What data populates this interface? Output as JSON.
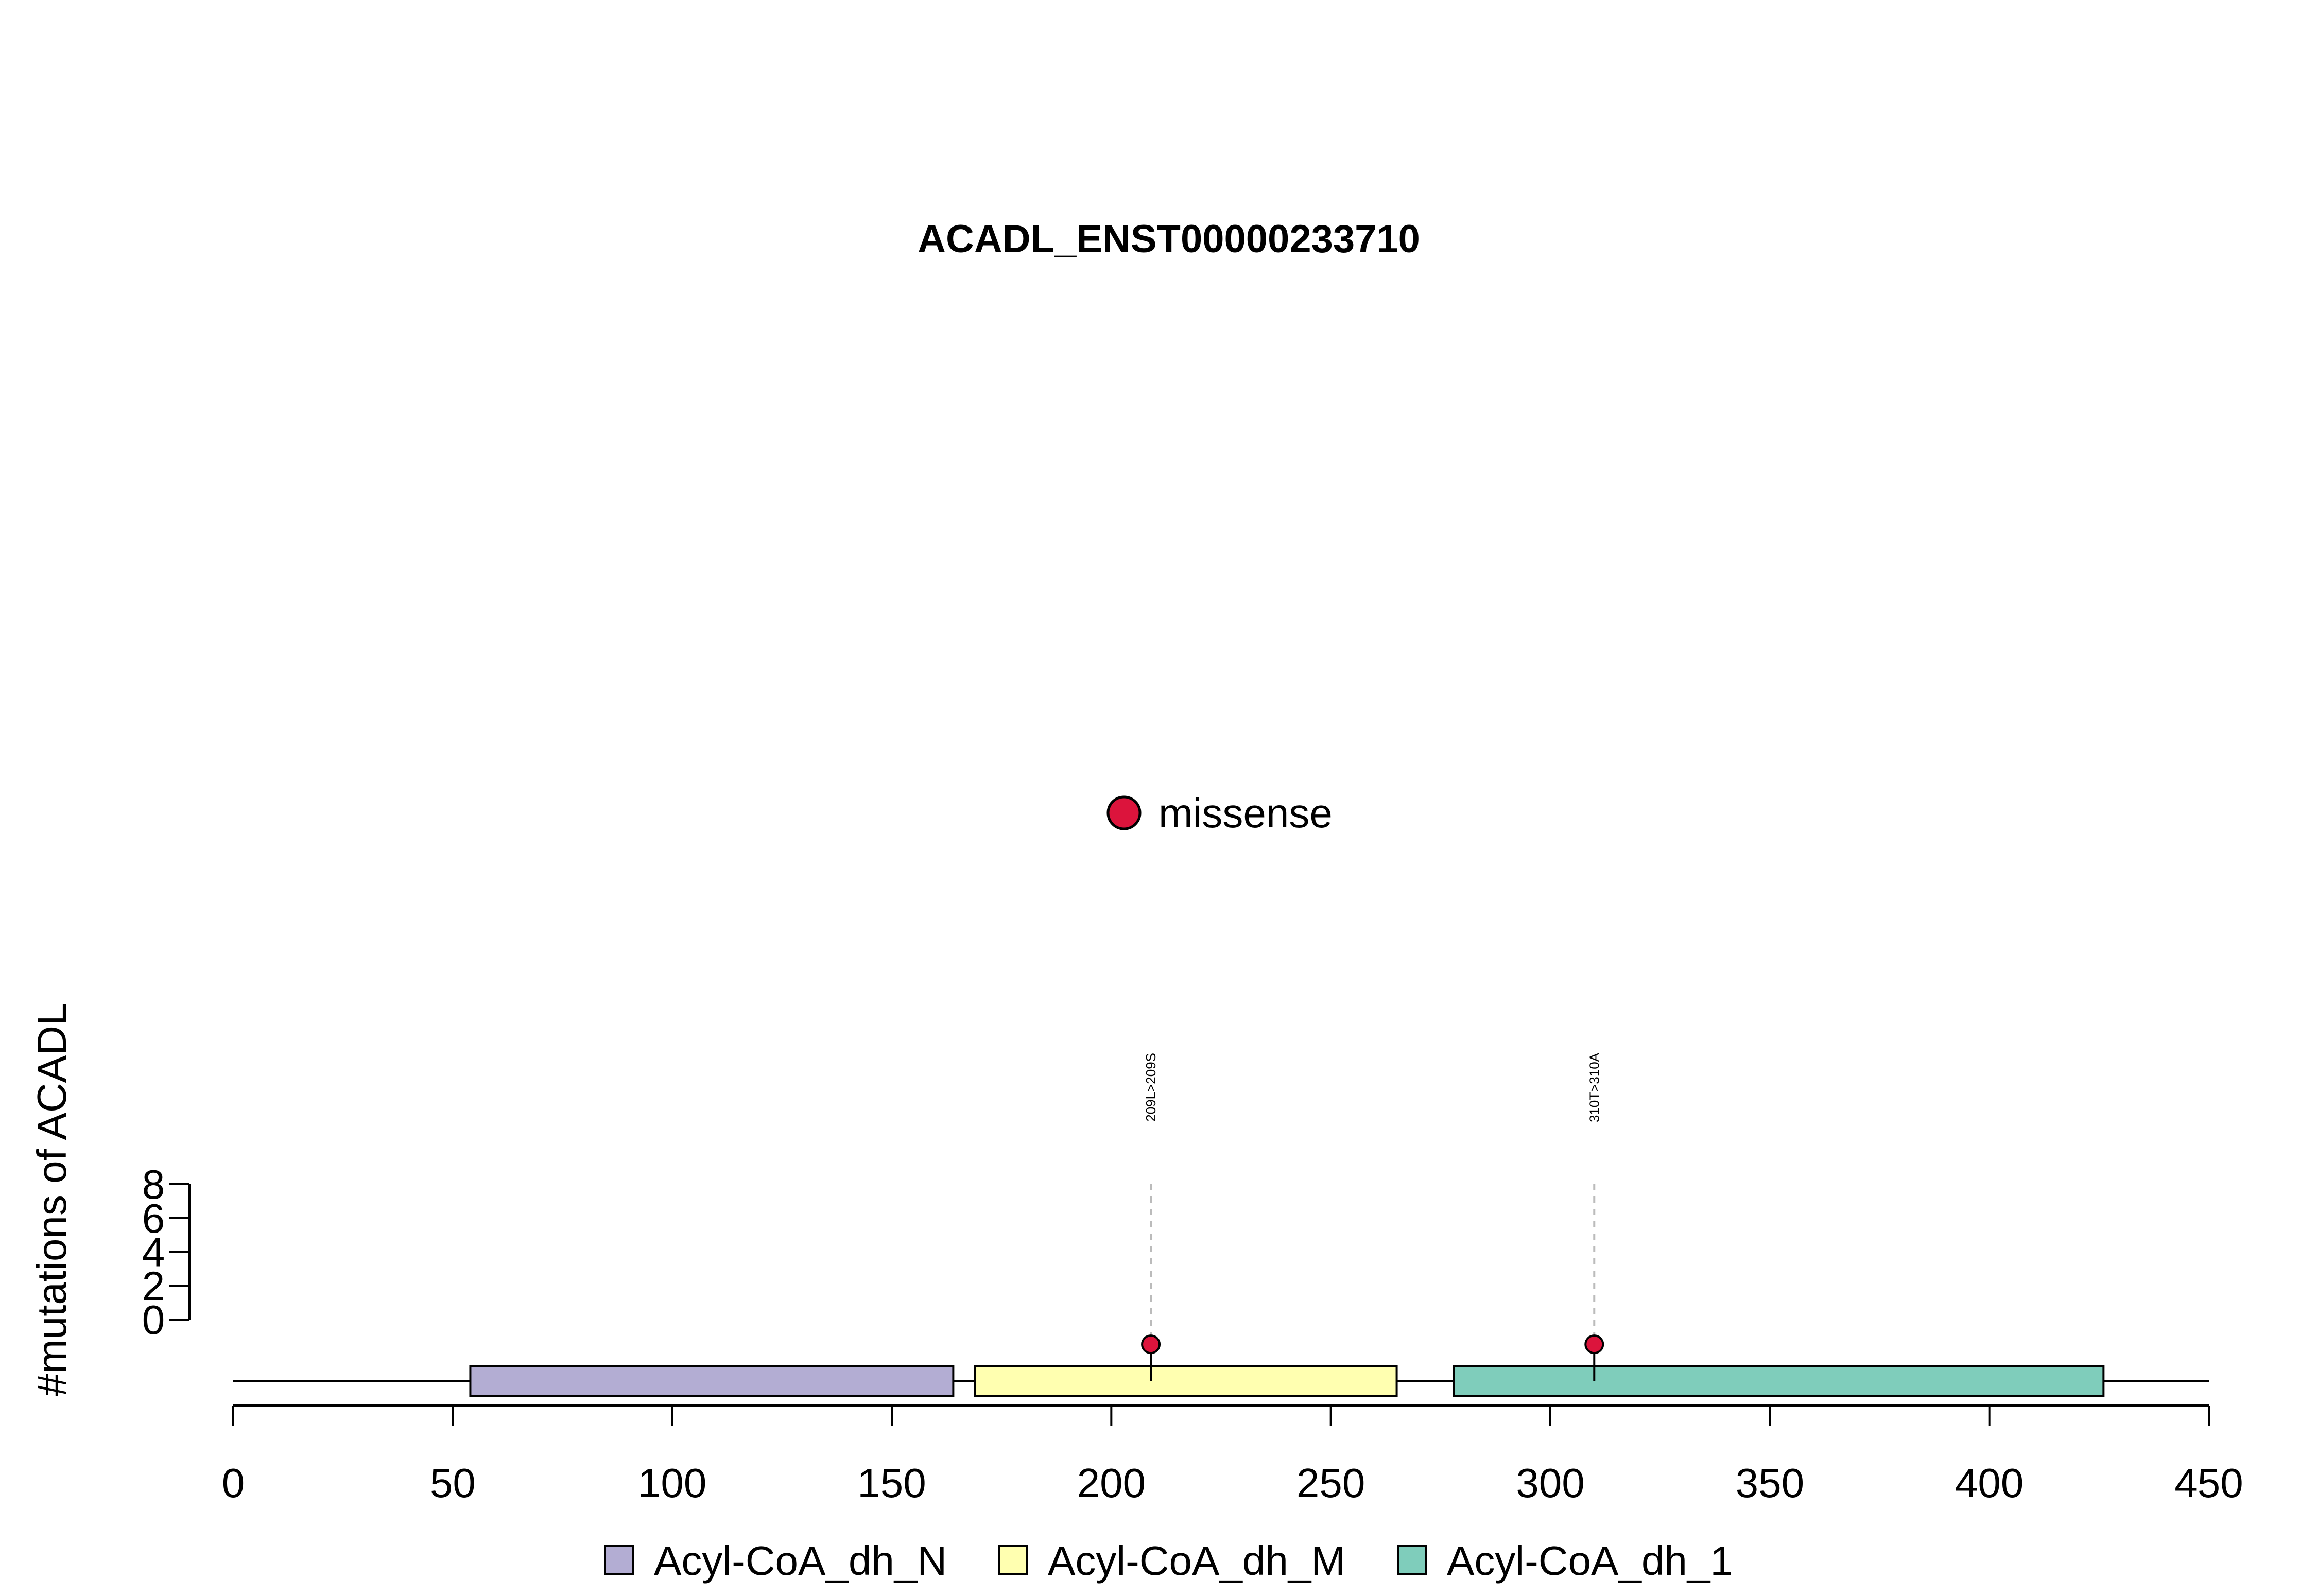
{
  "chart_data": {
    "type": "scatter",
    "title": "ACADL_ENST00000233710",
    "xlabel": "",
    "ylabel": "#mutations of ACADL",
    "xlim": [
      0,
      450
    ],
    "x_ticks": [
      "0",
      "50",
      "100",
      "150",
      "200",
      "250",
      "300",
      "350",
      "400",
      "450"
    ],
    "ylim": [
      0,
      8
    ],
    "y_ticks": [
      "0",
      "2",
      "4",
      "6",
      "8"
    ],
    "mutation_legend": [
      {
        "label": "missense",
        "color": "#DC143C"
      }
    ],
    "mutations": [
      {
        "position": 209,
        "count": 1,
        "label": "209L>209S",
        "type": "missense"
      },
      {
        "position": 310,
        "count": 1,
        "label": "310T>310A",
        "type": "missense"
      }
    ],
    "domains": [
      {
        "name": "Acyl-CoA_dh_N",
        "start": 54,
        "end": 164,
        "color": "#B3ADD3"
      },
      {
        "name": "Acyl-CoA_dh_M",
        "start": 169,
        "end": 265,
        "color": "#FFFFB0"
      },
      {
        "name": "Acyl-CoA_dh_1",
        "start": 278,
        "end": 426,
        "color": "#7FCDBB"
      }
    ],
    "protein_length": 450,
    "grid": false
  }
}
